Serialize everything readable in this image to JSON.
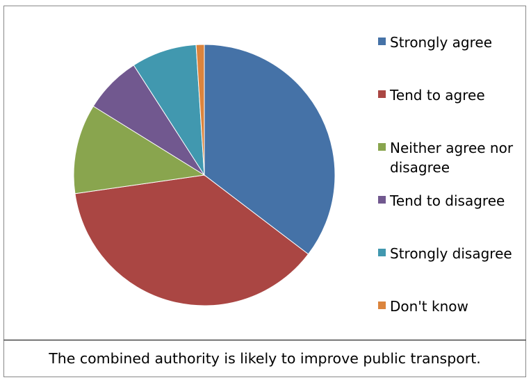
{
  "chart_data": {
    "type": "pie",
    "categories": [
      "Strongly agree",
      "Tend to agree",
      "Neither agree nor disagree",
      "Tend to disagree",
      "Strongly disagree",
      "Don't know"
    ],
    "values": [
      35,
      37,
      11,
      7,
      8,
      1
    ],
    "unit": "%",
    "colors": [
      "#4572A7",
      "#AA4643",
      "#89A54E",
      "#71588F",
      "#4198AF",
      "#DB843D"
    ],
    "start_angle_deg": 0,
    "direction": "clockwise",
    "legend_position": "right"
  },
  "caption": "The combined authority is likely to improve public transport."
}
